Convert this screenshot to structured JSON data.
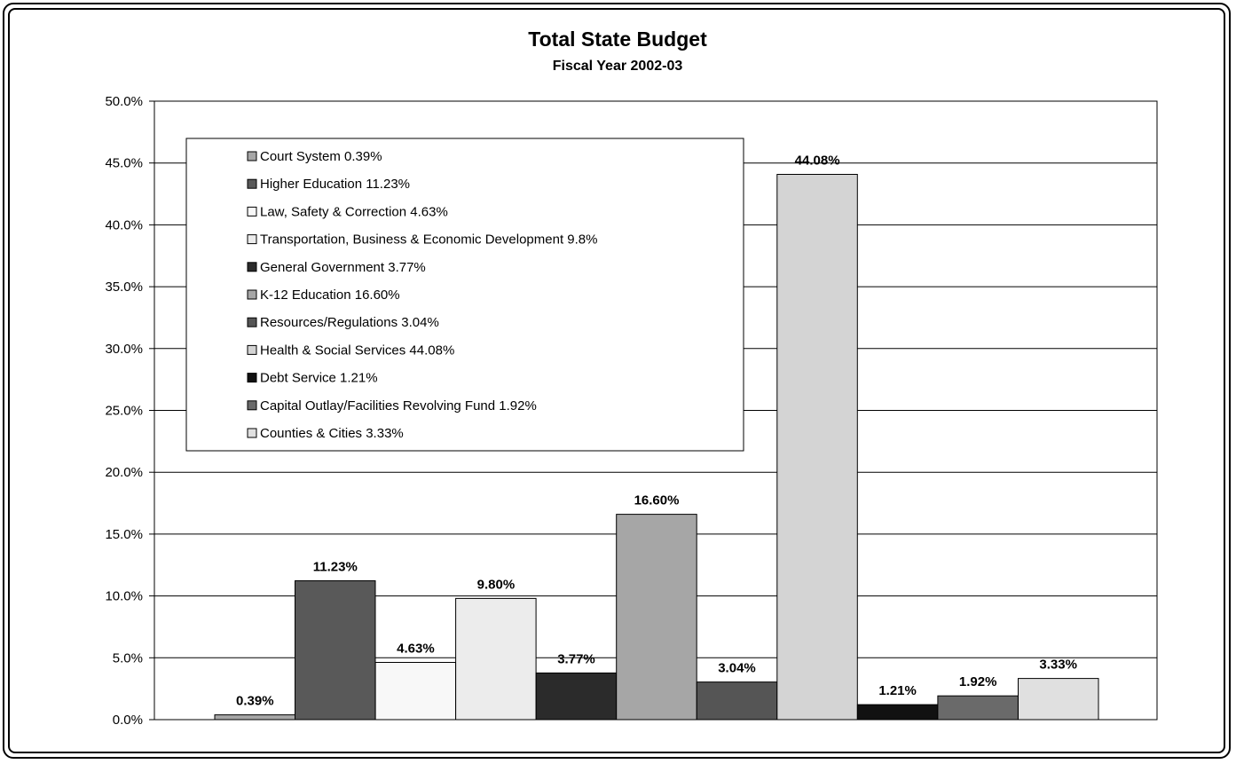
{
  "chart_data": {
    "type": "bar",
    "title": "Total State Budget",
    "subtitle": "Fiscal Year 2002-03",
    "xlabel": "",
    "ylabel": "",
    "ylim": [
      0,
      50
    ],
    "yticks": [
      "0.0%",
      "5.0%",
      "10.0%",
      "15.0%",
      "20.0%",
      "25.0%",
      "30.0%",
      "35.0%",
      "40.0%",
      "45.0%",
      "50.0%"
    ],
    "grid": true,
    "legend_position": "top-left",
    "series": [
      {
        "name": "Court System  0.39%",
        "value": 0.39,
        "label": "0.39%",
        "color": "#a6a6a6"
      },
      {
        "name": "Higher Education  11.23%",
        "value": 11.23,
        "label": "11.23%",
        "color": "#595959"
      },
      {
        "name": "Law, Safety & Correction  4.63%",
        "value": 4.63,
        "label": "4.63%",
        "color": "#f8f8f8"
      },
      {
        "name": "Transportation, Business & Economic Development  9.8%",
        "value": 9.8,
        "label": "9.80%",
        "color": "#ececec"
      },
      {
        "name": "General Government  3.77%",
        "value": 3.77,
        "label": "3.77%",
        "color": "#2b2b2b"
      },
      {
        "name": "K-12 Education  16.60%",
        "value": 16.6,
        "label": "16.60%",
        "color": "#a6a6a6"
      },
      {
        "name": "Resources/Regulations  3.04%",
        "value": 3.04,
        "label": "3.04%",
        "color": "#555555"
      },
      {
        "name": "Health & Social Services  44.08%",
        "value": 44.08,
        "label": "44.08%",
        "color": "#d4d4d4"
      },
      {
        "name": "Debt Service  1.21%",
        "value": 1.21,
        "label": "1.21%",
        "color": "#111111"
      },
      {
        "name": "Capital Outlay/Facilities Revolving Fund  1.92%",
        "value": 1.92,
        "label": "1.92%",
        "color": "#6a6a6a"
      },
      {
        "name": "Counties & Cities  3.33%",
        "value": 3.33,
        "label": "3.33%",
        "color": "#e0e0e0"
      }
    ]
  }
}
